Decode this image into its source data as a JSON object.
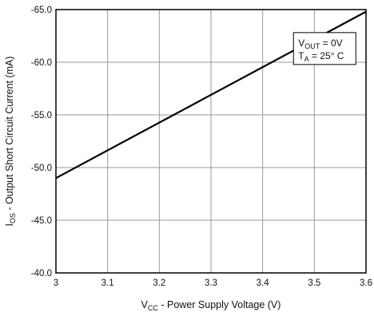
{
  "chart_data": {
    "type": "line",
    "x_axis": {
      "label_main": "V",
      "label_sub": "CC",
      "label_rest": " -  Power Supply Voltage (V)",
      "range": [
        3.0,
        3.6
      ],
      "ticks": [
        3.0,
        3.1,
        3.2,
        3.3,
        3.4,
        3.5,
        3.6
      ],
      "tick_labels": [
        "3",
        "3.1",
        "3.2",
        "3.3",
        "3.4",
        "3.5",
        "3.6"
      ]
    },
    "y_axis": {
      "label_main": "I",
      "label_sub": "OS",
      "label_rest": " - Output Short Circuit Current (mA)",
      "range": [
        -40.0,
        -65.0
      ],
      "ticks": [
        -40.0,
        -45.0,
        -50.0,
        -55.0,
        -60.0,
        -65.0
      ],
      "tick_labels": [
        "-40.0",
        "-45.0",
        "-50.0",
        "-55.0",
        "-60.0",
        "-65.0"
      ]
    },
    "grid": true,
    "series": [
      {
        "x": [
          3.0,
          3.6
        ],
        "y": [
          -49.0,
          -64.8
        ],
        "color": "#000000"
      }
    ],
    "annotation": {
      "line1_main": "V",
      "line1_sub": "OUT",
      "line1_rest": " = 0V",
      "line2_main": "T",
      "line2_sub": "A",
      "line2_rest": " = 25° C",
      "x": 3.52,
      "y": -61.3
    }
  }
}
